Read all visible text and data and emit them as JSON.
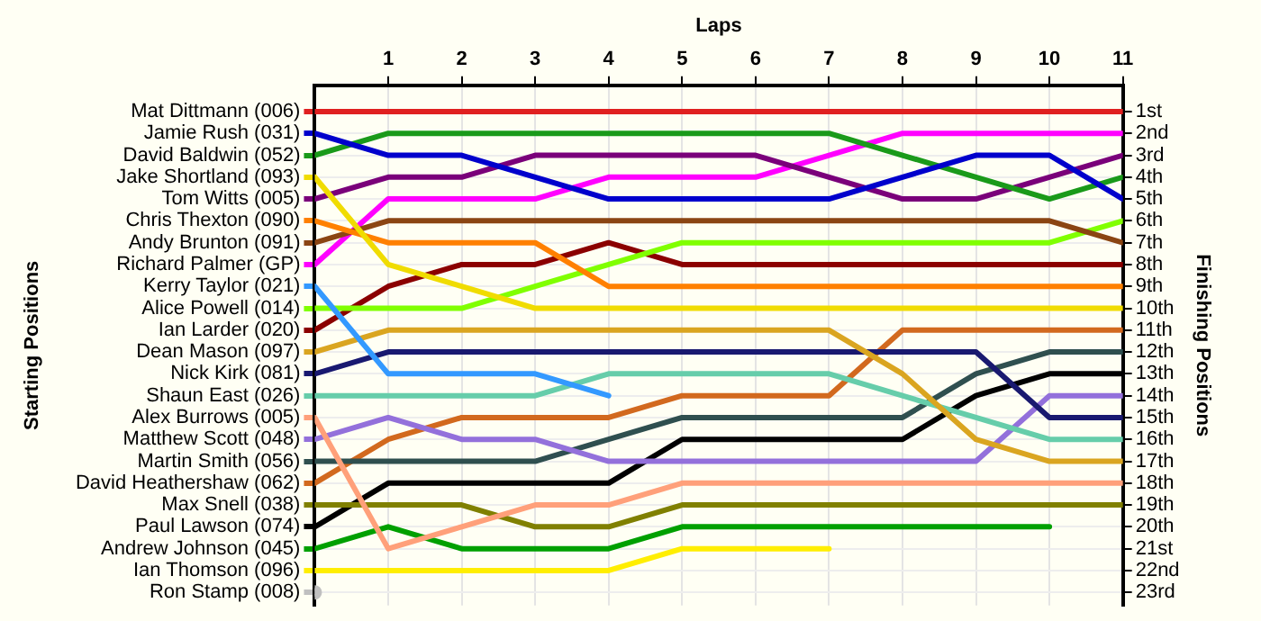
{
  "chart_data": {
    "type": "line",
    "xlabel": "Laps",
    "ylabel": "Finishing Positions",
    "annotations": [
      "Starting Positions"
    ],
    "x": [
      0,
      1,
      2,
      3,
      4,
      5,
      6,
      7,
      8,
      9,
      10,
      11
    ],
    "xlim": [
      0,
      11
    ],
    "xticks": [
      1,
      2,
      3,
      4,
      5,
      6,
      7,
      8,
      9,
      10,
      11
    ],
    "ylim": [
      23.6,
      -0.2
    ],
    "yticks": [
      {
        "value": 1,
        "label": "1st"
      },
      {
        "value": 2,
        "label": "2nd"
      },
      {
        "value": 3,
        "label": "3rd"
      },
      {
        "value": 4,
        "label": "4th"
      },
      {
        "value": 5,
        "label": "5th"
      },
      {
        "value": 6,
        "label": "6th"
      },
      {
        "value": 7,
        "label": "7th"
      },
      {
        "value": 8,
        "label": "8th"
      },
      {
        "value": 9,
        "label": "9th"
      },
      {
        "value": 10,
        "label": "10th"
      },
      {
        "value": 11,
        "label": "11th"
      },
      {
        "value": 12,
        "label": "12th"
      },
      {
        "value": 13,
        "label": "13th"
      },
      {
        "value": 14,
        "label": "14th"
      },
      {
        "value": 15,
        "label": "15th"
      },
      {
        "value": 16,
        "label": "16th"
      },
      {
        "value": 17,
        "label": "17th"
      },
      {
        "value": 18,
        "label": "18th"
      },
      {
        "value": 19,
        "label": "19th"
      },
      {
        "value": 20,
        "label": "20th"
      },
      {
        "value": 21,
        "label": "21st"
      },
      {
        "value": 22,
        "label": "22nd"
      },
      {
        "value": 23,
        "label": "23rd"
      }
    ],
    "grid": true,
    "legend": "left",
    "marker": "none",
    "line_style": "solid",
    "series": [
      {
        "name": "Mat Dittmann (006)",
        "color": "#e02020",
        "values": [
          1,
          1,
          1,
          1,
          1,
          1,
          1,
          1,
          1,
          1,
          1,
          1
        ]
      },
      {
        "name": "Jamie Rush (031)",
        "color": "#0000cc",
        "values": [
          2,
          3,
          3,
          4,
          5,
          5,
          5,
          5,
          4,
          3,
          3,
          5
        ]
      },
      {
        "name": "David Baldwin (052)",
        "color": "#1a9a1a",
        "values": [
          3,
          2,
          2,
          2,
          2,
          2,
          2,
          2,
          3,
          4,
          5,
          4
        ]
      },
      {
        "name": "Jake Shortland (093)",
        "color": "#f0dc00",
        "values": [
          4,
          8,
          9,
          10,
          10,
          10,
          10,
          10,
          10,
          10,
          10,
          10
        ]
      },
      {
        "name": "Tom Witts (005)",
        "color": "#7a007a",
        "values": [
          5,
          4,
          4,
          3,
          3,
          3,
          3,
          4,
          5,
          5,
          4,
          3
        ]
      },
      {
        "name": "Chris Thexton (090)",
        "color": "#ff8000",
        "values": [
          6,
          7,
          7,
          7,
          9,
          9,
          9,
          9,
          9,
          9,
          9,
          9
        ]
      },
      {
        "name": "Andy Brunton (091)",
        "color": "#8b4513",
        "values": [
          7,
          6,
          6,
          6,
          6,
          6,
          6,
          6,
          6,
          6,
          6,
          7
        ]
      },
      {
        "name": "Richard Palmer (GP)",
        "color": "#ff00ff",
        "values": [
          8,
          5,
          5,
          5,
          4,
          4,
          4,
          3,
          2,
          2,
          2,
          2
        ]
      },
      {
        "name": "Kerry Taylor (021)",
        "color": "#3399ff",
        "values": [
          9,
          13,
          13,
          13,
          14,
          null,
          null,
          null,
          null,
          null,
          null,
          null
        ]
      },
      {
        "name": "Alice Powell (014)",
        "color": "#80ff00",
        "values": [
          10,
          10,
          10,
          9,
          8,
          7,
          7,
          7,
          7,
          7,
          7,
          6
        ]
      },
      {
        "name": "Ian Larder (020)",
        "color": "#8b0000",
        "values": [
          11,
          9,
          8,
          8,
          7,
          8,
          8,
          8,
          8,
          8,
          8,
          8
        ]
      },
      {
        "name": "Dean Mason (097)",
        "color": "#daa520",
        "values": [
          12,
          11,
          11,
          11,
          11,
          11,
          11,
          11,
          13,
          16,
          17,
          17
        ]
      },
      {
        "name": "Nick Kirk (081)",
        "color": "#191970",
        "values": [
          13,
          12,
          12,
          12,
          12,
          12,
          12,
          12,
          12,
          12,
          15,
          15
        ]
      },
      {
        "name": "Shaun East (026)",
        "color": "#66cdaa",
        "values": [
          14,
          14,
          14,
          14,
          13,
          13,
          13,
          13,
          14,
          15,
          16,
          16
        ]
      },
      {
        "name": "Alex Burrows (005)",
        "color": "#ffa07a",
        "values": [
          15,
          21,
          20,
          19,
          19,
          18,
          18,
          18,
          18,
          18,
          18,
          18
        ]
      },
      {
        "name": "Matthew Scott (048)",
        "color": "#9370db",
        "values": [
          16,
          15,
          16,
          16,
          17,
          17,
          17,
          17,
          17,
          17,
          14,
          14
        ]
      },
      {
        "name": "Martin Smith (056)",
        "color": "#2f4f4f",
        "values": [
          17,
          17,
          17,
          17,
          16,
          15,
          15,
          15,
          15,
          13,
          12,
          12
        ]
      },
      {
        "name": "David Heathershaw (062)",
        "color": "#d2691e",
        "values": [
          18,
          16,
          15,
          15,
          15,
          14,
          14,
          14,
          11,
          11,
          11,
          11
        ]
      },
      {
        "name": "Max Snell (038)",
        "color": "#808000",
        "values": [
          19,
          19,
          19,
          20,
          20,
          19,
          19,
          19,
          19,
          19,
          19,
          19
        ]
      },
      {
        "name": "Paul Lawson (074)",
        "color": "#000000",
        "values": [
          20,
          18,
          18,
          18,
          18,
          16,
          16,
          16,
          16,
          14,
          13,
          13
        ]
      },
      {
        "name": "Andrew Johnson (045)",
        "color": "#00a000",
        "values": [
          21,
          20,
          21,
          21,
          21,
          20,
          20,
          20,
          20,
          20,
          20,
          null
        ]
      },
      {
        "name": "Ian Thomson (096)",
        "color": "#ffee00",
        "values": [
          22,
          22,
          22,
          22,
          22,
          21,
          21,
          21,
          null,
          null,
          null,
          null
        ]
      },
      {
        "name": "Ron Stamp (008)",
        "color": "#c0c0c0",
        "marker": "circle",
        "values": [
          23,
          null,
          null,
          null,
          null,
          null,
          null,
          null,
          null,
          null,
          null,
          null
        ]
      }
    ]
  }
}
